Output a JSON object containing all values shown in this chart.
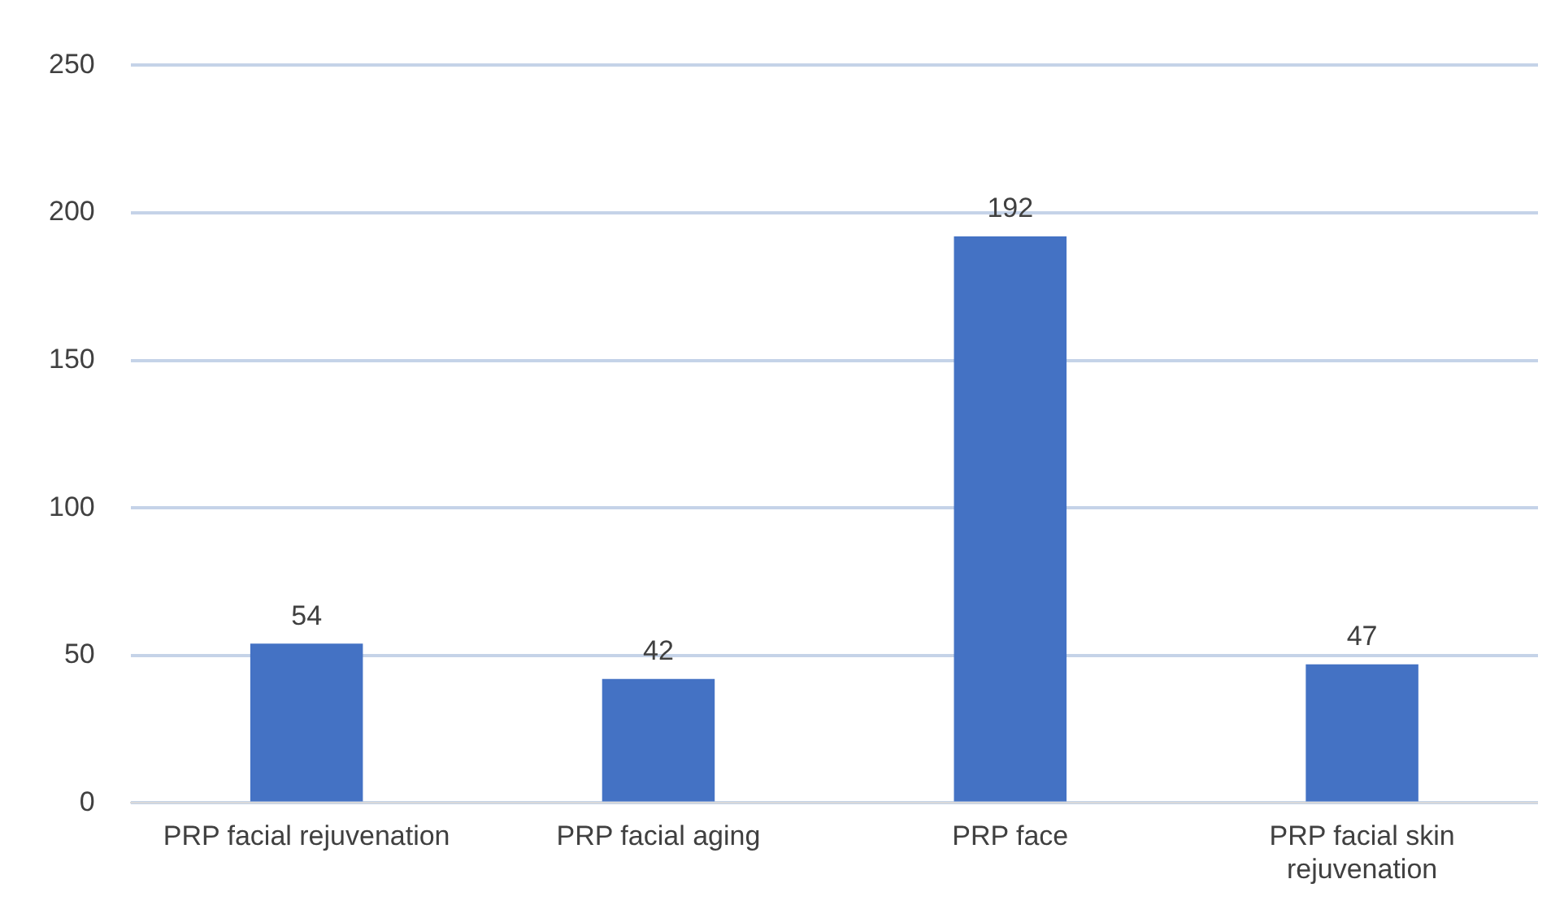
{
  "chart_data": {
    "type": "bar",
    "categories": [
      "PRP facial rejuvenation",
      "PRP facial aging",
      "PRP face",
      "PRP facial skin rejuvenation"
    ],
    "values": [
      54,
      42,
      192,
      47
    ],
    "color": "#4472c4",
    "ylim": [
      0,
      250
    ],
    "yticks": [
      0,
      50,
      100,
      150,
      200,
      250
    ],
    "grid": "y",
    "data_labels": true,
    "legend": false
  }
}
